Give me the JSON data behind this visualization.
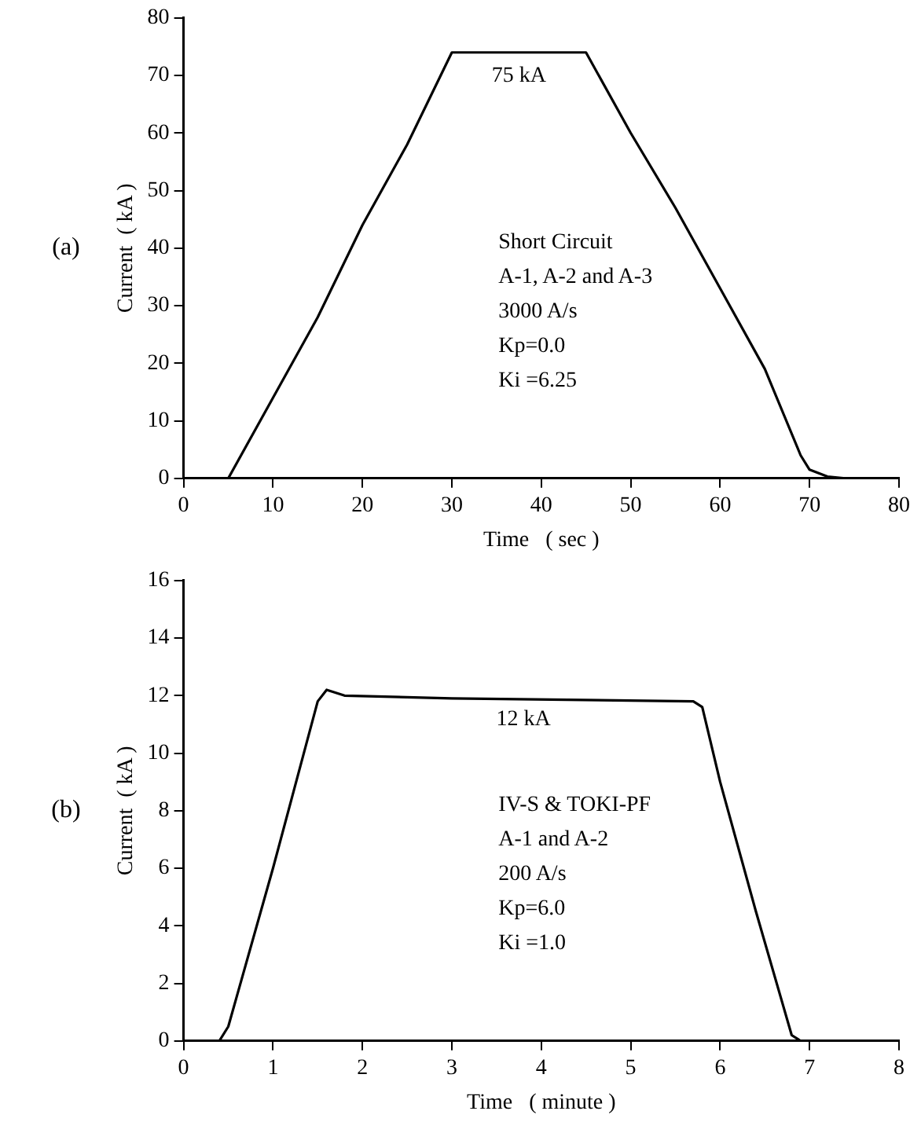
{
  "chart_data": [
    {
      "type": "line",
      "title": "(a)",
      "xlabel": "Time   ( sec )",
      "ylabel": "Current  ( kA )",
      "x": [
        0,
        5,
        10,
        15,
        20,
        25,
        30,
        45,
        50,
        55,
        60,
        65,
        69,
        70,
        72,
        74
      ],
      "series": [
        {
          "color": "#000000",
          "values": [
            0,
            0,
            14,
            28,
            44,
            58,
            74,
            74,
            60,
            47,
            33,
            19,
            4,
            1.5,
            0.3,
            0
          ]
        }
      ],
      "xlim": [
        0,
        80
      ],
      "xticks": [
        0,
        10,
        20,
        30,
        40,
        50,
        60,
        70,
        80
      ],
      "ylim": [
        0,
        80
      ],
      "yticks": [
        0,
        10,
        20,
        30,
        40,
        50,
        60,
        70,
        80
      ],
      "annotations": [
        {
          "text": "75 kA",
          "x": 37.5,
          "y": 74
        },
        "Short Circuit",
        "A-1, A-2 and A-3",
        "3000 A/s",
        "Kp=0.0",
        "Ki =6.25"
      ],
      "grid": false,
      "legend": false,
      "marker": "none",
      "line_style": "solid"
    },
    {
      "type": "line",
      "title": "(b)",
      "xlabel": "Time   ( minute )",
      "ylabel": "Current  ( kA )",
      "x": [
        0,
        0.4,
        0.5,
        1,
        1.5,
        1.6,
        1.8,
        3,
        5.7,
        5.8,
        6,
        6.4,
        6.8,
        6.9
      ],
      "series": [
        {
          "color": "#000000",
          "values": [
            0,
            0,
            0.5,
            6,
            11.8,
            12.2,
            12,
            11.9,
            11.8,
            11.6,
            9,
            4.5,
            0.2,
            0
          ]
        }
      ],
      "xlim": [
        0,
        8
      ],
      "xticks": [
        0,
        1,
        2,
        3,
        4,
        5,
        6,
        7,
        8
      ],
      "ylim": [
        0,
        16
      ],
      "yticks": [
        0,
        2,
        4,
        6,
        8,
        10,
        12,
        14,
        16
      ],
      "annotations": [
        {
          "text": "12 kA",
          "x": 3.8,
          "y": 12
        },
        "IV-S & TOKI-PF",
        "A-1 and A-2",
        "200 A/s",
        "Kp=6.0",
        "Ki =1.0"
      ],
      "grid": false,
      "legend": false,
      "marker": "none",
      "line_style": "solid"
    }
  ]
}
